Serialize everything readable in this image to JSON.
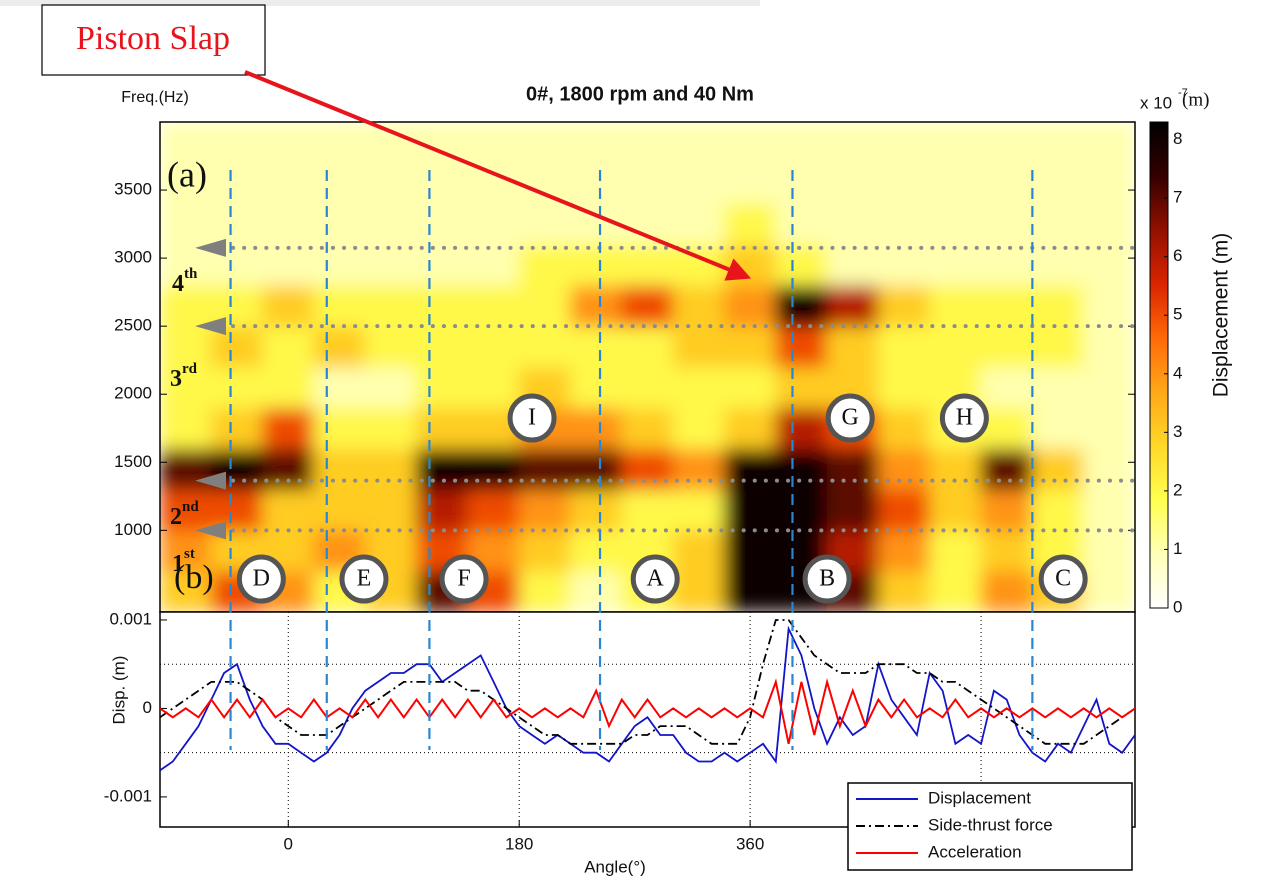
{
  "chart_data": [
    {
      "type": "heatmap",
      "title": "0#, 1800 rpm and 40 Nm",
      "y_label": "Freq.(Hz)",
      "panel_label": "(a)",
      "annotation": "Piston Slap",
      "xlim": [
        -100,
        660
      ],
      "ylim": [
        400,
        4000
      ],
      "yticks": [
        1000,
        1500,
        2000,
        2500,
        3000,
        3500
      ],
      "x_bins": [
        -100,
        -60,
        -20,
        20,
        60,
        100,
        140,
        180,
        220,
        260,
        300,
        340,
        380,
        420,
        460,
        500,
        540,
        580,
        620,
        660
      ],
      "y_bins": [
        400,
        700,
        1000,
        1300,
        1600,
        1900,
        2200,
        2500,
        2800,
        3100,
        3400,
        3700,
        4000
      ],
      "z": [
        [
          3,
          5,
          4,
          2,
          3,
          7,
          5,
          2,
          1,
          2,
          3,
          8,
          8,
          7,
          3,
          2,
          4,
          3,
          1
        ],
        [
          4,
          3,
          3,
          4,
          3,
          5,
          4,
          3,
          2,
          2,
          3,
          8,
          8,
          6,
          4,
          2,
          3,
          2,
          1
        ],
        [
          5,
          5,
          3,
          3,
          3,
          6,
          5,
          4,
          3,
          2,
          2,
          8,
          8,
          7,
          5,
          3,
          4,
          2,
          1
        ],
        [
          7,
          8,
          7,
          3,
          3,
          8,
          8,
          7,
          7,
          5,
          4,
          8,
          8,
          7,
          4,
          3,
          7,
          3,
          1
        ],
        [
          2,
          3,
          5,
          2,
          2,
          3,
          3,
          4,
          4,
          3,
          2,
          3,
          6,
          5,
          3,
          2,
          2,
          1,
          1
        ],
        [
          2,
          2,
          2,
          1,
          1,
          2,
          2,
          3,
          2,
          2,
          2,
          2,
          3,
          3,
          2,
          2,
          1,
          1,
          1
        ],
        [
          2,
          3,
          2,
          3,
          2,
          2,
          2,
          2,
          2,
          2,
          3,
          3,
          5,
          3,
          2,
          2,
          2,
          2,
          1
        ],
        [
          2,
          2,
          3,
          2,
          2,
          2,
          2,
          2,
          4,
          5,
          3,
          4,
          8,
          6,
          3,
          2,
          2,
          2,
          1
        ],
        [
          1,
          1,
          1,
          1,
          1,
          1,
          1,
          2,
          2,
          2,
          2,
          3,
          2,
          1,
          1,
          1,
          1,
          1,
          1
        ],
        [
          1,
          1,
          1,
          1,
          1,
          1,
          1,
          1,
          1,
          1,
          1,
          2,
          1,
          1,
          1,
          1,
          1,
          1,
          1
        ],
        [
          1,
          1,
          1,
          1,
          1,
          1,
          1,
          1,
          1,
          1,
          1,
          1,
          1,
          1,
          1,
          1,
          1,
          1,
          1
        ],
        [
          1,
          1,
          1,
          1,
          1,
          1,
          1,
          1,
          1,
          1,
          1,
          1,
          1,
          1,
          1,
          1,
          1,
          1,
          1
        ]
      ],
      "colorbar": {
        "label": "Displacement (m)",
        "scale_label": "x 10",
        "scale_exponent": "-7",
        "unit": "(m)",
        "clim": [
          0,
          8.3
        ],
        "ticks": [
          0,
          1,
          2,
          3,
          4,
          5,
          6,
          7,
          8
        ],
        "colormap": [
          "#ffffff",
          "#ffffb8",
          "#ffff50",
          "#ffd828",
          "#ffa818",
          "#ff6a08",
          "#da2400",
          "#921000",
          "#340000",
          "#000000"
        ]
      },
      "harmonic_lines": [
        1000,
        1365,
        2500,
        3075
      ],
      "harmonic_labels": [
        {
          "text": "1",
          "sup": "st"
        },
        {
          "text": "2",
          "sup": "nd"
        },
        {
          "text": "3",
          "sup": "rd"
        },
        {
          "text": "4",
          "sup": "th"
        }
      ],
      "event_lines": [
        -45,
        30,
        110,
        243,
        393,
        580
      ],
      "markers": [
        {
          "label": "D",
          "x": -21,
          "y": 642
        },
        {
          "label": "E",
          "x": 59,
          "y": 642
        },
        {
          "label": "F",
          "x": 137,
          "y": 642
        },
        {
          "label": "A",
          "x": 286,
          "y": 642
        },
        {
          "label": "B",
          "x": 420,
          "y": 642
        },
        {
          "label": "C",
          "x": 604,
          "y": 642
        },
        {
          "label": "I",
          "x": 190,
          "y": 1825
        },
        {
          "label": "G",
          "x": 438,
          "y": 1825
        },
        {
          "label": "H",
          "x": 527,
          "y": 1825
        }
      ]
    },
    {
      "type": "line",
      "panel_label": "(b)",
      "x_label": "Angle(°)",
      "y_label": "Disp. (m)",
      "xlim": [
        -100,
        660
      ],
      "xticks": [
        0,
        180,
        360
      ],
      "xgrid": [
        0,
        180,
        360,
        540
      ],
      "ylim": [
        -0.00134,
        0.00109
      ],
      "yticks": [
        -0.001,
        0,
        0.001
      ],
      "ygrid": [
        -0.0005,
        0.0005
      ],
      "legend": "lower right",
      "x": [
        -100,
        -90,
        -80,
        -70,
        -60,
        -50,
        -40,
        -30,
        -20,
        -10,
        0,
        10,
        20,
        30,
        40,
        50,
        60,
        70,
        80,
        90,
        100,
        110,
        120,
        130,
        140,
        150,
        160,
        170,
        180,
        190,
        200,
        210,
        220,
        230,
        240,
        250,
        260,
        270,
        280,
        290,
        300,
        310,
        320,
        330,
        340,
        350,
        360,
        370,
        380,
        390,
        400,
        410,
        420,
        430,
        440,
        450,
        460,
        470,
        480,
        490,
        500,
        510,
        520,
        530,
        540,
        550,
        560,
        570,
        580,
        590,
        600,
        610,
        620,
        630,
        640,
        650,
        660
      ],
      "series": [
        {
          "name": "Displacement",
          "color": "#1414c8",
          "dash": "solid",
          "values": [
            -0.0007,
            -0.0006,
            -0.0004,
            -0.0002,
            0.0001,
            0.0004,
            0.0005,
            0.0001,
            -0.0002,
            -0.0004,
            -0.0004,
            -0.0005,
            -0.0006,
            -0.0005,
            -0.0003,
            0,
            0.0002,
            0.0003,
            0.0004,
            0.0004,
            0.0005,
            0.0005,
            0.0003,
            0.0004,
            0.0005,
            0.0006,
            0.0003,
            0,
            -0.0002,
            -0.0003,
            -0.0004,
            -0.0003,
            -0.0004,
            -0.0005,
            -0.0005,
            -0.0006,
            -0.0004,
            -0.0002,
            -0.0001,
            -0.0003,
            -0.0003,
            -0.0005,
            -0.0006,
            -0.0006,
            -0.0005,
            -0.0006,
            -0.0005,
            -0.0004,
            -0.0006,
            0.0009,
            0.0006,
            0,
            -0.0004,
            -0.0001,
            -0.0003,
            -0.0002,
            0.0005,
            0.0001,
            -0.0001,
            -0.0003,
            0.0004,
            0.0002,
            -0.0004,
            -0.0003,
            -0.0004,
            0.0002,
            0.0001,
            -0.0003,
            -0.0005,
            -0.0006,
            -0.0004,
            -0.0005,
            -0.0002,
            0.0001,
            -0.0004,
            -0.0005,
            -0.0003
          ]
        },
        {
          "name": "Side-thrust force",
          "color": "#000000",
          "dash": "dash-dot",
          "values": [
            -0.0001,
            0,
            0.0001,
            0.0002,
            0.0003,
            0.0003,
            0.0003,
            0.0002,
            0.0001,
            -0.0001,
            -0.0002,
            -0.0003,
            -0.0003,
            -0.0003,
            -0.0002,
            -0.0001,
            0,
            0.0001,
            0.0002,
            0.0003,
            0.0003,
            0.0003,
            0.0003,
            0.0003,
            0.0002,
            0.0002,
            0.0001,
            0,
            -0.0001,
            -0.0002,
            -0.0003,
            -0.0003,
            -0.0004,
            -0.0004,
            -0.0004,
            -0.0004,
            -0.0004,
            -0.0003,
            -0.0003,
            -0.0002,
            -0.0002,
            -0.0002,
            -0.0003,
            -0.0004,
            -0.0004,
            -0.0004,
            -0.0001,
            0.0005,
            0.001,
            0.001,
            0.0008,
            0.0006,
            0.0005,
            0.0004,
            0.0004,
            0.0004,
            0.0005,
            0.0005,
            0.0005,
            0.0004,
            0.0004,
            0.0003,
            0.0003,
            0.0002,
            0.0001,
            0,
            -0.0001,
            -0.0002,
            -0.0003,
            -0.0004,
            -0.0004,
            -0.0004,
            -0.0004,
            -0.0003,
            -0.0002,
            -0.0001,
            0
          ]
        },
        {
          "name": "Acceleration",
          "color": "#ff0000",
          "dash": "solid",
          "values": [
            0,
            -0.0001,
            0,
            -0.0001,
            0.0001,
            -0.0001,
            0.0001,
            -0.0001,
            0.0001,
            -0.0001,
            0,
            -0.0001,
            0.0001,
            -0.0001,
            0,
            -0.0001,
            0.0001,
            -0.0001,
            0.0001,
            -0.0001,
            0.0001,
            -0.0001,
            0.0001,
            -0.0001,
            0.0001,
            -0.0001,
            0.0001,
            -0.0001,
            0,
            -0.0001,
            0,
            -0.0001,
            0,
            -0.0001,
            0.0002,
            -0.0002,
            0.0001,
            -0.0001,
            0.0001,
            -0.0001,
            0,
            -0.0001,
            0,
            -0.0001,
            0,
            -0.0001,
            0,
            -0.0001,
            0.0003,
            -0.0004,
            0.0003,
            -0.0003,
            0.0003,
            -0.0002,
            0.0002,
            -0.0002,
            0.0001,
            -0.0001,
            0.0001,
            -0.0001,
            0,
            -0.0001,
            0.0001,
            -0.0001,
            0,
            -0.0001,
            0,
            -0.0001,
            0,
            -0.0001,
            0,
            -0.0001,
            0,
            -0.0001,
            0,
            -0.0001,
            0
          ]
        }
      ]
    }
  ]
}
